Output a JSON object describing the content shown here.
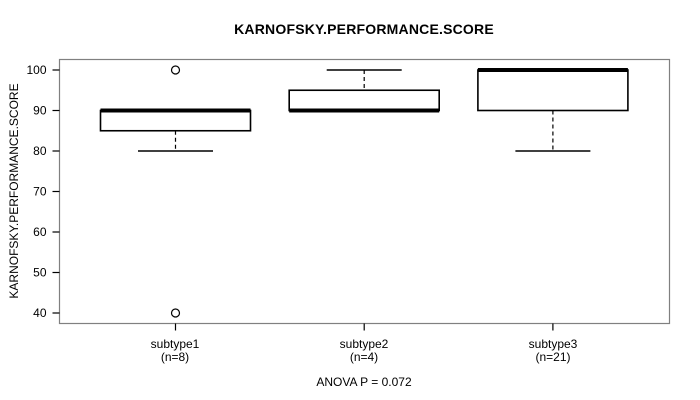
{
  "colors": {
    "foreground": "#000000",
    "frame": "#808080",
    "background": "#ffffff",
    "box_fill": "#ffffff"
  },
  "chart_data": {
    "type": "boxplot",
    "title": "KARNOFSKY.PERFORMANCE.SCORE",
    "ylabel": "KARNOFSKY.PERFORMANCE.SCORE",
    "footer": "ANOVA P = 0.072",
    "ylim": [
      40,
      100
    ],
    "yticks": [
      40,
      50,
      60,
      70,
      80,
      90,
      100
    ],
    "grid": false,
    "legend": "none",
    "groups": [
      {
        "label": "subtype1",
        "n_label": "(n=8)",
        "whisker_low": 80,
        "q1": 85,
        "median": 90,
        "q3": 90,
        "whisker_high": 90,
        "outliers": [
          100,
          40
        ]
      },
      {
        "label": "subtype2",
        "n_label": "(n=4)",
        "whisker_low": 90,
        "q1": 90,
        "median": 90,
        "q3": 95,
        "whisker_high": 100,
        "outliers": []
      },
      {
        "label": "subtype3",
        "n_label": "(n=21)",
        "whisker_low": 80,
        "q1": 90,
        "median": 100,
        "q3": 100,
        "whisker_high": 100,
        "outliers": []
      }
    ]
  }
}
